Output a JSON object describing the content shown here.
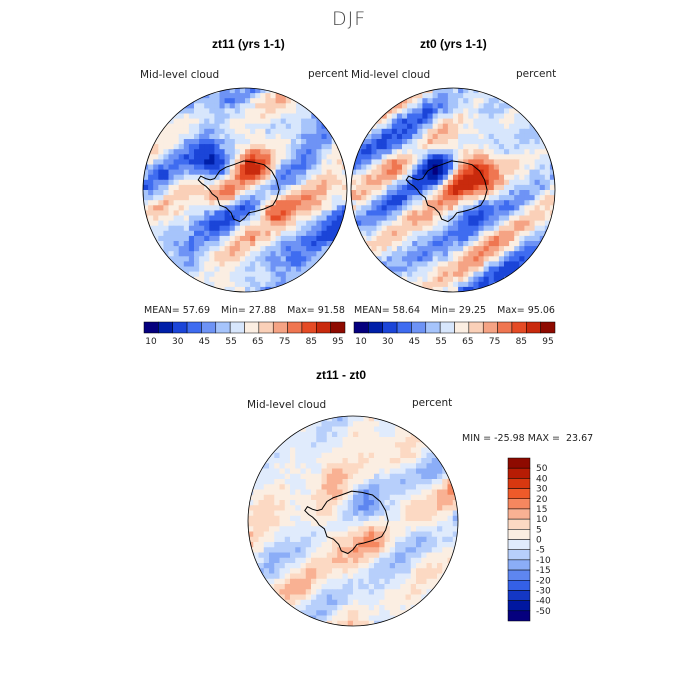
{
  "header": {
    "season": "DJF"
  },
  "panels": [
    {
      "title": "zt11 (yrs 1-1)",
      "variable": "Mid-level cloud",
      "units": "percent",
      "stats": {
        "mean_label": "MEAN=",
        "mean": "57.69",
        "min_label": "Min=",
        "min": "27.88",
        "max_label": "Max=",
        "max": "91.58"
      }
    },
    {
      "title": "zt0 (yrs 1-1)",
      "variable": "Mid-level cloud",
      "units": "percent",
      "stats": {
        "mean_label": "MEAN=",
        "mean": "58.64",
        "min_label": "Min=",
        "min": "29.25",
        "max_label": "Max=",
        "max": "95.06"
      }
    },
    {
      "title": "zt11 - zt0",
      "variable": "Mid-level cloud",
      "units": "percent",
      "stats_line": "MIN = -25.98 MAX =  23.67"
    }
  ],
  "colors": {
    "abs_scale": [
      "#05007e",
      "#001fa8",
      "#1b45d8",
      "#3f6cf0",
      "#6e93f5",
      "#a6c4fb",
      "#d7e6fc",
      "#fbeee2",
      "#fad0b8",
      "#f5a384",
      "#ef7651",
      "#e54b25",
      "#c92a0d",
      "#8e0a00"
    ],
    "diff_scale": [
      "#8e0a00",
      "#b71c04",
      "#d83810",
      "#ef5a2a",
      "#f5875f",
      "#f9b193",
      "#fcd9c3",
      "#fbeee2",
      "#e0ebfc",
      "#b7cffb",
      "#8badf7",
      "#5e86f0",
      "#3460e6",
      "#1437c4",
      "#0017a0",
      "#05007e"
    ]
  },
  "chart_data": [
    {
      "type": "heatmap",
      "title": "zt11 (yrs 1-1)",
      "projection": "south polar stereographic",
      "variable": "Mid-level cloud",
      "units": "percent",
      "mean": 57.69,
      "min": 27.88,
      "max": 91.58,
      "colorbar_ticks": [
        "10",
        "30",
        "45",
        "55",
        "65",
        "75",
        "85",
        "95"
      ]
    },
    {
      "type": "heatmap",
      "title": "zt0 (yrs 1-1)",
      "projection": "south polar stereographic",
      "variable": "Mid-level cloud",
      "units": "percent",
      "mean": 58.64,
      "min": 29.25,
      "max": 95.06,
      "colorbar_ticks": [
        "10",
        "30",
        "45",
        "55",
        "65",
        "75",
        "85",
        "95"
      ]
    },
    {
      "type": "heatmap",
      "title": "zt11 - zt0",
      "projection": "south polar stereographic",
      "variable": "Mid-level cloud",
      "units": "percent",
      "min": -25.98,
      "max": 23.67,
      "colorbar_ticks": [
        "50",
        "40",
        "30",
        "20",
        "15",
        "10",
        "5",
        "0",
        "-5",
        "-10",
        "-15",
        "-20",
        "-30",
        "-40",
        "-50"
      ]
    }
  ]
}
